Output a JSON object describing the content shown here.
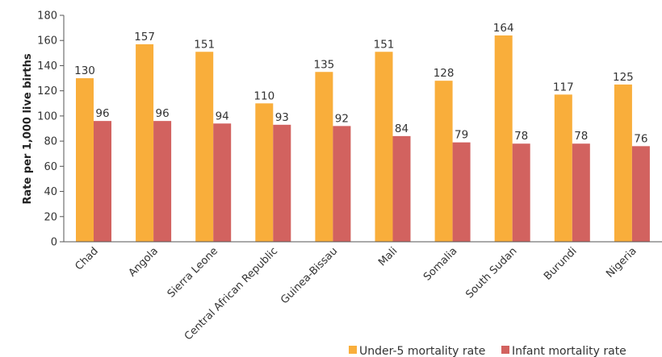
{
  "chart_data": {
    "type": "bar",
    "title": "",
    "xlabel": "",
    "ylabel": "Rate per 1,000 live births",
    "ylim": [
      0,
      180
    ],
    "yticks": [
      0,
      20,
      40,
      60,
      80,
      100,
      120,
      140,
      160,
      180
    ],
    "grid": false,
    "legend_position": "bottom-right",
    "categories": [
      "Chad",
      "Angola",
      "Sierra Leone",
      "Central African Republic",
      "Guinea-Bissau",
      "Mali",
      "Somalia",
      "South Sudan",
      "Burundi",
      "Nigeria"
    ],
    "series": [
      {
        "name": "Under-5 mortality rate",
        "color": "#F9AE3B",
        "values": [
          130,
          157,
          151,
          110,
          135,
          151,
          128,
          164,
          117,
          125
        ]
      },
      {
        "name": "Infant mortality rate",
        "color": "#D2625F",
        "values": [
          96,
          96,
          94,
          93,
          92,
          84,
          79,
          78,
          78,
          76
        ]
      }
    ]
  }
}
